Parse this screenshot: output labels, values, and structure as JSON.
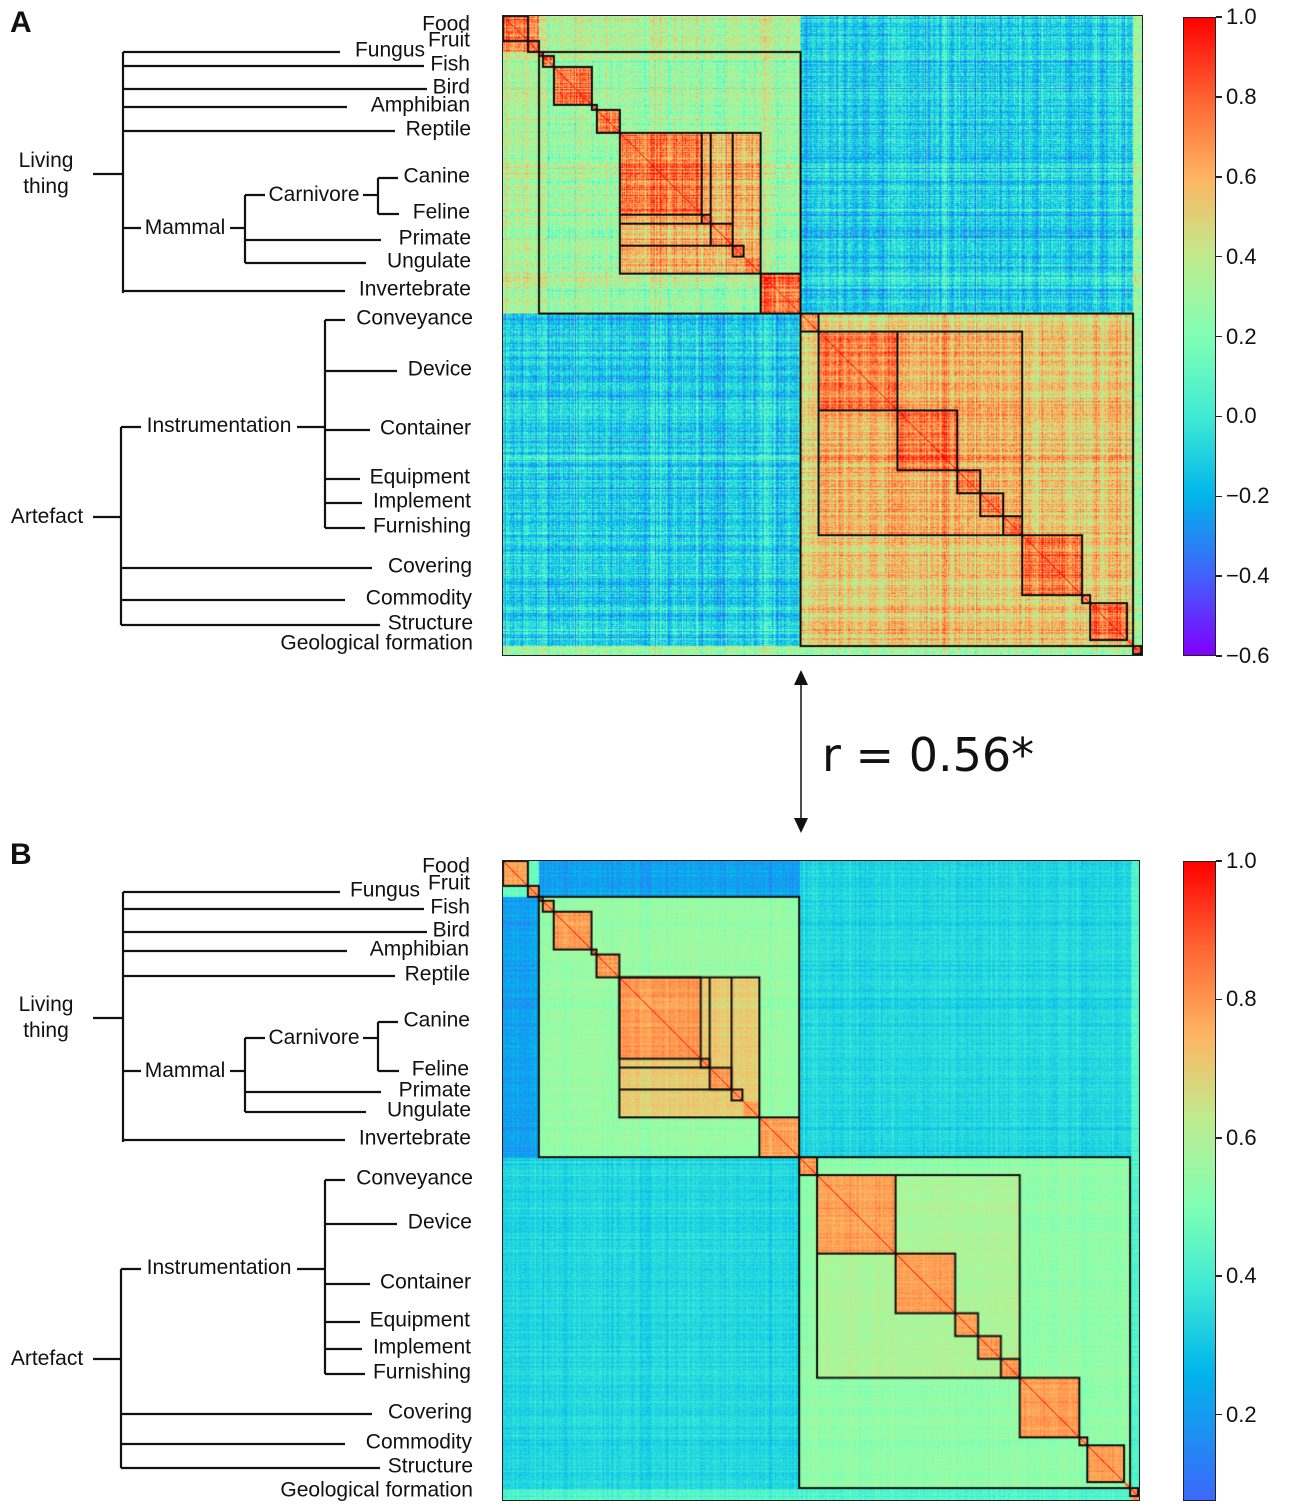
{
  "labels": {
    "food": "Food",
    "fruit": "Fruit",
    "fungus": "Fungus",
    "fish": "Fish",
    "bird": "Bird",
    "amphibian": "Amphibian",
    "reptile": "Reptile",
    "canine": "Canine",
    "feline": "Feline",
    "primate": "Primate",
    "ungulate": "Ungulate",
    "invertebrate": "Invertebrate",
    "conveyance": "Conveyance",
    "device": "Device",
    "container": "Container",
    "equipment": "Equipment",
    "implement": "Implement",
    "furnishing": "Furnishing",
    "covering": "Covering",
    "commodity": "Commodity",
    "structure": "Structure",
    "geological": "Geological formation",
    "carnivore": "Carnivore",
    "mammal": "Mammal",
    "instrumentation": "Instrumentation",
    "living_1": "Living",
    "living_2": "thing",
    "artefact": "Artefact"
  },
  "annotation": "r = 0.56*",
  "chart_data": [
    {
      "type": "heatmap",
      "title": "A",
      "categories": [
        "Food",
        "Fruit",
        "Fungus",
        "Fish",
        "Bird",
        "Amphibian",
        "Reptile",
        "Canine",
        "Feline",
        "Primate",
        "Ungulate",
        "Invertebrate",
        "Conveyance",
        "Device",
        "Container",
        "Equipment",
        "Implement",
        "Furnishing",
        "Covering",
        "Commodity",
        "Structure",
        "Geological formation"
      ],
      "hierarchy": {
        "Living thing": [
          "Fungus",
          "Fish",
          "Bird",
          "Amphibian",
          "Reptile",
          "Mammal",
          "Invertebrate"
        ],
        "Mammal": [
          "Carnivore",
          "Primate",
          "Ungulate"
        ],
        "Carnivore": [
          "Canine",
          "Feline"
        ],
        "Artefact": [
          "Instrumentation",
          "Covering",
          "Commodity",
          "Structure"
        ],
        "Instrumentation": [
          "Conveyance",
          "Device",
          "Container",
          "Equipment",
          "Implement",
          "Furnishing"
        ]
      },
      "colormap": "rainbow",
      "vlim": [
        -0.6,
        1.0
      ],
      "colorbar_ticks": [
        "1.0",
        "0.8",
        "0.6",
        "0.4",
        "0.2",
        "0.0",
        "−0.2",
        "−0.4",
        "−0.6"
      ],
      "colorbar_tick_values": [
        1.0,
        0.8,
        0.6,
        0.4,
        0.2,
        0.0,
        -0.2,
        -0.4,
        -0.6
      ],
      "approx_similarity": {
        "within_category": 0.75,
        "within_mammal": 0.65,
        "within_living": 0.3,
        "within_artefact": 0.55,
        "within_instrumentation": 0.65,
        "living_vs_artefact": -0.15,
        "diagonal": 1.0
      }
    },
    {
      "type": "heatmap",
      "title": "B",
      "categories": [
        "Food",
        "Fruit",
        "Fungus",
        "Fish",
        "Bird",
        "Amphibian",
        "Reptile",
        "Canine",
        "Feline",
        "Primate",
        "Ungulate",
        "Invertebrate",
        "Conveyance",
        "Device",
        "Container",
        "Equipment",
        "Implement",
        "Furnishing",
        "Covering",
        "Commodity",
        "Structure",
        "Geological formation"
      ],
      "colormap": "rainbow",
      "vlim": [
        0.075,
        1.0
      ],
      "colorbar_ticks": [
        "1.0",
        "0.8",
        "0.6",
        "0.4",
        "0.2"
      ],
      "colorbar_tick_values": [
        1.0,
        0.8,
        0.6,
        0.4,
        0.2
      ],
      "approx_similarity": {
        "within_category": 0.8,
        "within_mammal": 0.72,
        "within_living": 0.6,
        "within_artefact": 0.58,
        "within_instrumentation": 0.62,
        "living_vs_artefact": 0.38,
        "diagonal": 1.0
      }
    }
  ]
}
